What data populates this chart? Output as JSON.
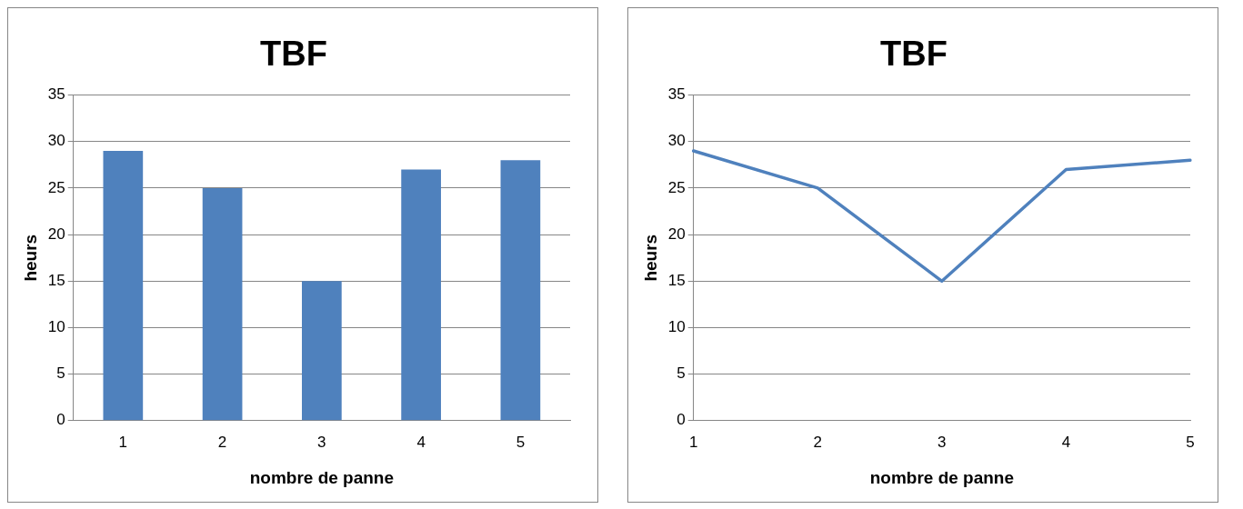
{
  "chart_data": [
    {
      "type": "bar",
      "title": "TBF",
      "xlabel": "nombre de panne",
      "ylabel": "heurs",
      "categories": [
        "1",
        "2",
        "3",
        "4",
        "5"
      ],
      "values": [
        29,
        25,
        15,
        27,
        28
      ],
      "color": "#4f81bd",
      "ylim": [
        0,
        35
      ],
      "yticks": [
        0,
        5,
        10,
        15,
        20,
        25,
        30,
        35
      ],
      "grid": "y",
      "legend": false
    },
    {
      "type": "line",
      "title": "TBF",
      "xlabel": "nombre de panne",
      "ylabel": "heurs",
      "categories": [
        "1",
        "2",
        "3",
        "4",
        "5"
      ],
      "values": [
        29,
        25,
        15,
        27,
        28
      ],
      "color": "#4f81bd",
      "ylim": [
        0,
        35
      ],
      "yticks": [
        0,
        5,
        10,
        15,
        20,
        25,
        30,
        35
      ],
      "grid": "y",
      "legend": false,
      "marker": "none"
    }
  ]
}
